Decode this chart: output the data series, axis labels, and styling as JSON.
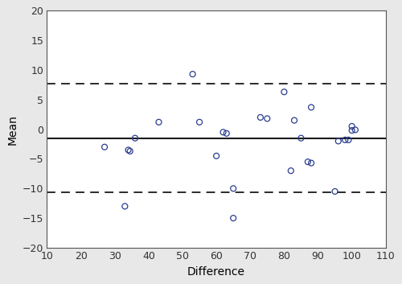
{
  "x_data": [
    27,
    33,
    34,
    34.5,
    36,
    43,
    53,
    55,
    60,
    62,
    63,
    65,
    65,
    73,
    75,
    80,
    82,
    83,
    85,
    87,
    88,
    88,
    95,
    96,
    98,
    99,
    100,
    100,
    101
  ],
  "y_data": [
    -3,
    -13,
    -3.5,
    -3.7,
    -1.5,
    1.2,
    9.3,
    1.2,
    -4.5,
    -0.5,
    -0.7,
    -10,
    -15,
    2.0,
    1.8,
    6.3,
    -7,
    1.5,
    -1.5,
    -5.5,
    -5.7,
    3.7,
    -10.5,
    -2,
    -1.8,
    -1.8,
    0.5,
    -0.2,
    -0.1
  ],
  "mean_line": -1.5,
  "upper_loa": 7.7,
  "lower_loa": -10.7,
  "xlim": [
    10,
    110
  ],
  "ylim": [
    -20,
    20
  ],
  "xticks": [
    10,
    20,
    30,
    40,
    50,
    60,
    70,
    80,
    90,
    100,
    110
  ],
  "yticks": [
    -20,
    -15,
    -10,
    -5,
    0,
    5,
    10,
    15,
    20
  ],
  "xlabel": "Difference",
  "ylabel": "Mean",
  "marker_color": "#2b3d8f",
  "marker_facecolor": "none",
  "marker_size": 5,
  "line_color": "#1a1a1a",
  "dashed_color": "#1a1a1a",
  "figure_facecolor": "#e8e8e8",
  "axes_facecolor": "#ffffff",
  "spine_color": "#555555"
}
